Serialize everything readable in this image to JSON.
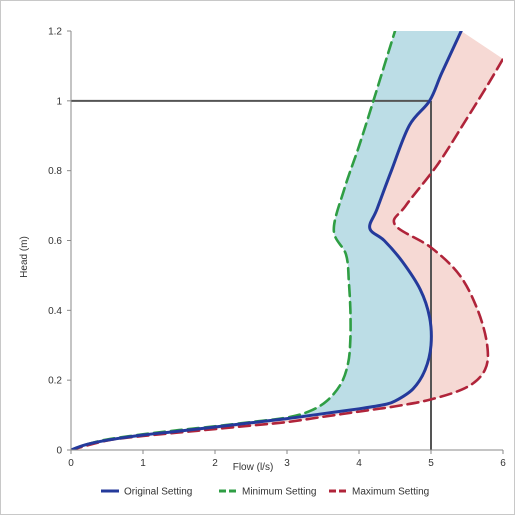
{
  "chart_data": {
    "type": "line",
    "xlabel": "Flow (l/s)",
    "ylabel": "Head (m)",
    "xlim": [
      0,
      6
    ],
    "ylim": [
      0,
      1.2
    ],
    "x_ticks": [
      "0",
      "1",
      "2",
      "3",
      "4",
      "5",
      "6"
    ],
    "y_ticks": [
      "0",
      "0.2",
      "0.4",
      "0.6",
      "0.8",
      "1",
      "1.2"
    ],
    "grid": false,
    "legend_position": "bottom",
    "colors": {
      "original": "#243a9b",
      "minimum": "#2f9e44",
      "maximum": "#b0243a",
      "band_min_orig": "#bcdde6",
      "band_orig_max": "#f6d9d4",
      "reference_line": "#555555"
    },
    "series": [
      {
        "name": "Original Setting",
        "key": "original",
        "style": "solid",
        "points": [
          [
            0,
            0
          ],
          [
            0.2,
            0.015
          ],
          [
            0.5,
            0.028
          ],
          [
            1.0,
            0.043
          ],
          [
            1.5,
            0.054
          ],
          [
            2.0,
            0.066
          ],
          [
            2.5,
            0.078
          ],
          [
            3.0,
            0.09
          ],
          [
            3.5,
            0.104
          ],
          [
            4.0,
            0.118
          ],
          [
            4.35,
            0.13
          ],
          [
            4.5,
            0.14
          ],
          [
            4.75,
            0.175
          ],
          [
            4.92,
            0.23
          ],
          [
            5.0,
            0.3
          ],
          [
            4.98,
            0.38
          ],
          [
            4.85,
            0.46
          ],
          [
            4.6,
            0.54
          ],
          [
            4.35,
            0.6
          ],
          [
            4.15,
            0.635
          ],
          [
            4.25,
            0.69
          ],
          [
            4.45,
            0.8
          ],
          [
            4.7,
            0.93
          ],
          [
            4.98,
            1.0
          ],
          [
            5.15,
            1.08
          ],
          [
            5.42,
            1.2
          ]
        ]
      },
      {
        "name": "Minimum Setting",
        "key": "minimum",
        "style": "dashed",
        "points": [
          [
            0,
            0
          ],
          [
            0.2,
            0.015
          ],
          [
            0.5,
            0.03
          ],
          [
            1.0,
            0.045
          ],
          [
            1.5,
            0.057
          ],
          [
            2.0,
            0.068
          ],
          [
            2.5,
            0.08
          ],
          [
            3.0,
            0.093
          ],
          [
            3.3,
            0.11
          ],
          [
            3.55,
            0.14
          ],
          [
            3.75,
            0.19
          ],
          [
            3.85,
            0.25
          ],
          [
            3.88,
            0.32
          ],
          [
            3.88,
            0.4
          ],
          [
            3.86,
            0.48
          ],
          [
            3.82,
            0.56
          ],
          [
            3.65,
            0.63
          ],
          [
            3.8,
            0.75
          ],
          [
            4.0,
            0.87
          ],
          [
            4.2,
            1.0
          ],
          [
            4.35,
            1.1
          ],
          [
            4.5,
            1.2
          ]
        ]
      },
      {
        "name": "Maximum Setting",
        "key": "maximum",
        "style": "dashed",
        "points": [
          [
            0,
            0
          ],
          [
            0.5,
            0.027
          ],
          [
            1.0,
            0.04
          ],
          [
            1.5,
            0.05
          ],
          [
            2.0,
            0.06
          ],
          [
            2.5,
            0.07
          ],
          [
            3.0,
            0.08
          ],
          [
            3.5,
            0.095
          ],
          [
            4.0,
            0.11
          ],
          [
            4.5,
            0.125
          ],
          [
            5.0,
            0.145
          ],
          [
            5.5,
            0.18
          ],
          [
            5.75,
            0.23
          ],
          [
            5.78,
            0.3
          ],
          [
            5.65,
            0.4
          ],
          [
            5.4,
            0.5
          ],
          [
            5.0,
            0.58
          ],
          [
            4.5,
            0.645
          ],
          [
            4.65,
            0.7
          ],
          [
            5.1,
            0.82
          ],
          [
            5.5,
            0.95
          ],
          [
            5.8,
            1.05
          ],
          [
            6.0,
            1.12
          ]
        ]
      }
    ],
    "reference_lines": [
      {
        "type": "horizontal",
        "y": 1,
        "x_from": 0,
        "x_to": 5
      },
      {
        "type": "vertical",
        "x": 5,
        "y_from": 0,
        "y_to": 1
      }
    ]
  }
}
